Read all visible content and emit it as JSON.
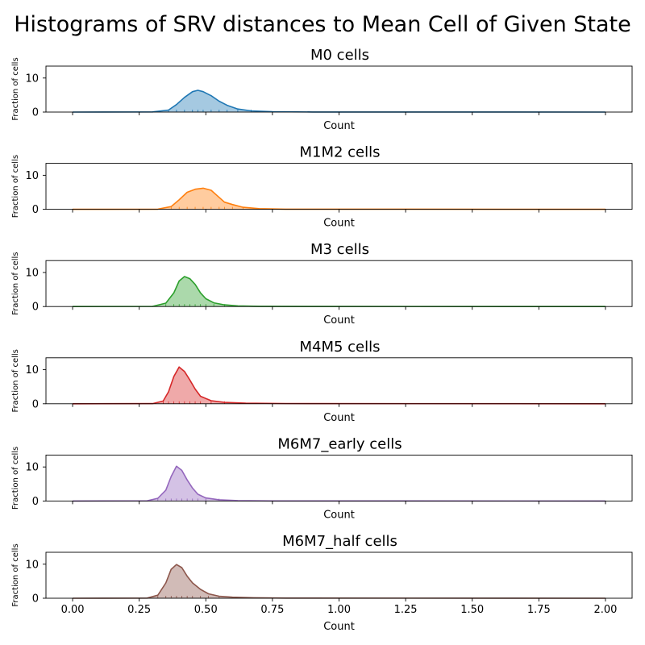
{
  "figure": {
    "title": "Histograms of SRV distances to Mean Cell of Given State"
  },
  "chart_data": [
    {
      "type": "area",
      "title": "M0 cells",
      "xlabel": "Count",
      "ylabel": "Fraction of cells",
      "xlim": [
        -0.1,
        2.1
      ],
      "ylim": [
        0,
        13.5
      ],
      "xticks": [
        0.0,
        0.25,
        0.5,
        0.75,
        1.0,
        1.25,
        1.5,
        1.75,
        2.0
      ],
      "xtick_labels": [],
      "yticks": [
        0,
        10
      ],
      "color": "#1f77b4",
      "series": [
        {
          "x": [
            0.0,
            0.3,
            0.36,
            0.39,
            0.42,
            0.45,
            0.47,
            0.49,
            0.52,
            0.55,
            0.58,
            0.62,
            0.67,
            0.75,
            0.9,
            2.0
          ],
          "values": [
            0.0,
            0.05,
            0.6,
            2.2,
            4.3,
            6.0,
            6.4,
            6.0,
            4.8,
            3.2,
            2.0,
            0.9,
            0.35,
            0.1,
            0.03,
            0.0
          ]
        }
      ]
    },
    {
      "type": "area",
      "title": "M1M2 cells",
      "xlabel": "Count",
      "ylabel": "Fraction of cells",
      "xlim": [
        -0.1,
        2.1
      ],
      "ylim": [
        0,
        13.5
      ],
      "xticks": [
        0.0,
        0.25,
        0.5,
        0.75,
        1.0,
        1.25,
        1.5,
        1.75,
        2.0
      ],
      "xtick_labels": [],
      "yticks": [
        0,
        10
      ],
      "color": "#ff7f0e",
      "series": [
        {
          "x": [
            0.0,
            0.32,
            0.37,
            0.4,
            0.43,
            0.46,
            0.49,
            0.52,
            0.55,
            0.57,
            0.6,
            0.64,
            0.7,
            0.8,
            2.0
          ],
          "values": [
            0.0,
            0.05,
            0.8,
            2.8,
            5.0,
            5.9,
            6.2,
            5.6,
            3.5,
            2.1,
            1.4,
            0.6,
            0.2,
            0.05,
            0.0
          ]
        }
      ]
    },
    {
      "type": "area",
      "title": "M3 cells",
      "xlabel": "Count",
      "ylabel": "Fraction of cells",
      "xlim": [
        -0.1,
        2.1
      ],
      "ylim": [
        0,
        13.5
      ],
      "xticks": [
        0.0,
        0.25,
        0.5,
        0.75,
        1.0,
        1.25,
        1.5,
        1.75,
        2.0
      ],
      "xtick_labels": [],
      "yticks": [
        0,
        10
      ],
      "color": "#2ca02c",
      "series": [
        {
          "x": [
            0.0,
            0.3,
            0.35,
            0.38,
            0.4,
            0.42,
            0.44,
            0.46,
            0.48,
            0.5,
            0.53,
            0.57,
            0.62,
            0.7,
            0.9,
            2.0
          ],
          "values": [
            0.0,
            0.05,
            1.0,
            4.0,
            7.5,
            8.8,
            8.2,
            6.5,
            4.0,
            2.3,
            1.1,
            0.5,
            0.2,
            0.08,
            0.02,
            0.0
          ]
        }
      ]
    },
    {
      "type": "area",
      "title": "M4M5 cells",
      "xlabel": "Count",
      "ylabel": "Fraction of cells",
      "xlim": [
        -0.1,
        2.1
      ],
      "ylim": [
        0,
        13.5
      ],
      "xticks": [
        0.0,
        0.25,
        0.5,
        0.75,
        1.0,
        1.25,
        1.5,
        1.75,
        2.0
      ],
      "xtick_labels": [],
      "yticks": [
        0,
        10
      ],
      "color": "#d62728",
      "series": [
        {
          "x": [
            0.0,
            0.3,
            0.34,
            0.36,
            0.38,
            0.4,
            0.42,
            0.44,
            0.46,
            0.48,
            0.52,
            0.57,
            0.65,
            0.8,
            2.0
          ],
          "values": [
            0.0,
            0.05,
            0.8,
            3.5,
            8.0,
            10.8,
            9.5,
            7.0,
            4.3,
            2.2,
            0.9,
            0.4,
            0.2,
            0.08,
            0.0
          ]
        }
      ]
    },
    {
      "type": "area",
      "title": "M6M7_early cells",
      "xlabel": "Count",
      "ylabel": "Fraction of cells",
      "xlim": [
        -0.1,
        2.1
      ],
      "ylim": [
        0,
        13.5
      ],
      "xticks": [
        0.0,
        0.25,
        0.5,
        0.75,
        1.0,
        1.25,
        1.5,
        1.75,
        2.0
      ],
      "xtick_labels": [],
      "yticks": [
        0,
        10
      ],
      "color": "#9467bd",
      "series": [
        {
          "x": [
            0.0,
            0.28,
            0.32,
            0.35,
            0.37,
            0.39,
            0.41,
            0.43,
            0.45,
            0.47,
            0.5,
            0.55,
            0.62,
            0.75,
            2.0
          ],
          "values": [
            0.0,
            0.05,
            0.8,
            3.2,
            7.2,
            10.2,
            9.0,
            6.2,
            3.8,
            2.0,
            0.9,
            0.35,
            0.12,
            0.03,
            0.0
          ]
        }
      ]
    },
    {
      "type": "area",
      "title": "M6M7_half cells",
      "xlabel": "Count",
      "ylabel": "Fraction of cells",
      "xlim": [
        -0.1,
        2.1
      ],
      "ylim": [
        0,
        13.5
      ],
      "xticks": [
        0.0,
        0.25,
        0.5,
        0.75,
        1.0,
        1.25,
        1.5,
        1.75,
        2.0
      ],
      "xtick_labels": [
        "0.00",
        "0.25",
        "0.50",
        "0.75",
        "1.00",
        "1.25",
        "1.50",
        "1.75",
        "2.00"
      ],
      "yticks": [
        0,
        10
      ],
      "color": "#8c564b",
      "series": [
        {
          "x": [
            0.0,
            0.28,
            0.32,
            0.35,
            0.37,
            0.39,
            0.41,
            0.43,
            0.45,
            0.48,
            0.51,
            0.55,
            0.6,
            0.68,
            0.8,
            2.0
          ],
          "values": [
            0.0,
            0.05,
            0.9,
            4.5,
            8.5,
            9.9,
            9.0,
            6.5,
            4.5,
            2.6,
            1.3,
            0.6,
            0.3,
            0.15,
            0.05,
            0.0
          ]
        }
      ]
    }
  ]
}
